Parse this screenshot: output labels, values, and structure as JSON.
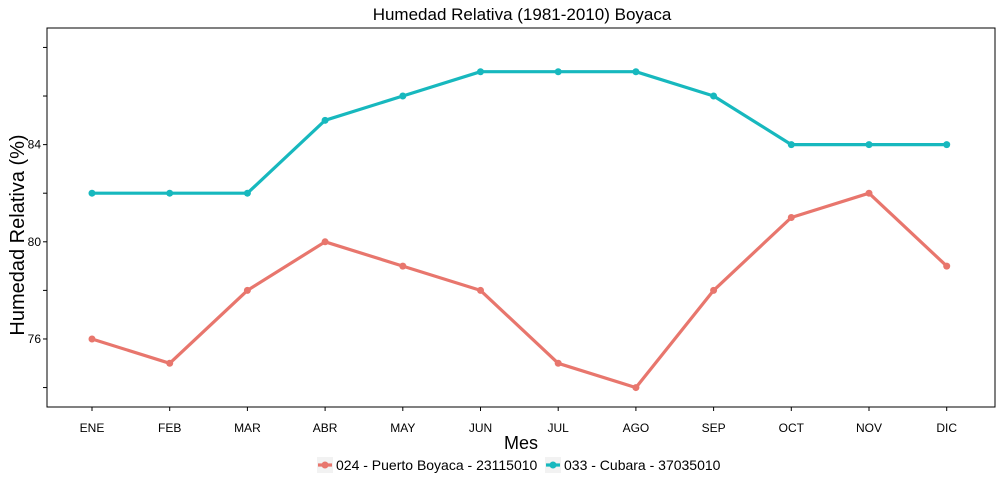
{
  "chart_data": {
    "type": "line",
    "title": "Humedad Relativa (1981-2010)  Boyaca",
    "xlabel": "Mes",
    "ylabel": "Humedad Relativa  (%)",
    "categories": [
      "ENE",
      "FEB",
      "MAR",
      "ABR",
      "MAY",
      "JUN",
      "JUL",
      "AGO",
      "SEP",
      "OCT",
      "NOV",
      "DIC"
    ],
    "yticks": [
      76,
      80,
      84
    ],
    "ylim": [
      73.2,
      88.8
    ],
    "grid": false,
    "legend_position": "bottom",
    "series": [
      {
        "name": "024 - Puerto Boyaca - 23115010",
        "color": "#E8766D",
        "values": [
          76,
          75,
          78,
          80,
          79,
          78,
          75,
          74,
          78,
          81,
          82,
          79
        ]
      },
      {
        "name": "033 - Cubara - 37035010",
        "color": "#17B8BE",
        "values": [
          82,
          82,
          82,
          85,
          86,
          87,
          87,
          87,
          86,
          84,
          84,
          84
        ]
      }
    ]
  }
}
